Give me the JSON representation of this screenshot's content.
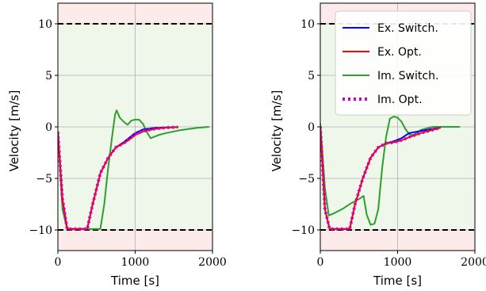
{
  "chart_data": [
    {
      "type": "line",
      "title": "",
      "xlabel": "Time [s]",
      "ylabel": "Velocity [m/s]",
      "xlim": [
        0,
        2000
      ],
      "ylim": [
        -12,
        12
      ],
      "xticks": [
        0,
        1000,
        2000
      ],
      "yticks": [
        -10,
        -5,
        0,
        5,
        10
      ],
      "grid": true,
      "bounds": [
        -10,
        10
      ],
      "regions": {
        "feasible_color": "#eef7ea",
        "infeasible_color": "#fdeaea"
      },
      "legend": null,
      "series": [
        {
          "name": "Ex. Switch.",
          "color": "#0000ff",
          "style": "solid",
          "x": [
            0,
            60,
            120,
            250,
            380,
            450,
            550,
            650,
            750,
            850,
            950,
            1000,
            1100,
            1250,
            1400,
            1550
          ],
          "y": [
            -0.5,
            -7,
            -9.9,
            -9.9,
            -9.9,
            -7.5,
            -4.5,
            -3.0,
            -2.0,
            -1.5,
            -0.9,
            -0.6,
            -0.25,
            -0.1,
            -0.05,
            -0.02
          ]
        },
        {
          "name": "Ex. Opt.",
          "color": "#ff0000",
          "style": "solid",
          "x": [
            0,
            60,
            120,
            250,
            380,
            450,
            550,
            650,
            750,
            850,
            950,
            1000,
            1100,
            1250,
            1400,
            1550
          ],
          "y": [
            -0.5,
            -7,
            -9.9,
            -9.9,
            -9.9,
            -7.5,
            -4.5,
            -3.0,
            -2.0,
            -1.6,
            -1.1,
            -0.8,
            -0.45,
            -0.2,
            -0.08,
            -0.03
          ]
        },
        {
          "name": "Im. Switch.",
          "color": "#2ca02c",
          "style": "solid",
          "x": [
            0,
            60,
            120,
            250,
            400,
            550,
            600,
            650,
            700,
            740,
            760,
            800,
            850,
            900,
            950,
            1000,
            1050,
            1100,
            1150,
            1200,
            1300,
            1400,
            1500,
            1600,
            1700,
            1800,
            1950
          ],
          "y": [
            -0.5,
            -8,
            -9.9,
            -9.9,
            -9.9,
            -9.9,
            -7.5,
            -4.0,
            -1.0,
            1.2,
            1.6,
            0.9,
            0.5,
            0.2,
            0.6,
            0.7,
            0.7,
            0.3,
            -0.5,
            -1.1,
            -0.8,
            -0.6,
            -0.45,
            -0.3,
            -0.2,
            -0.1,
            0.0
          ]
        },
        {
          "name": "Im. Opt.",
          "color": "#cc00cc",
          "style": "dotted",
          "x": [
            0,
            60,
            120,
            250,
            380,
            450,
            550,
            650,
            750,
            850,
            950,
            1000,
            1100,
            1250,
            1400,
            1550
          ],
          "y": [
            -0.5,
            -7,
            -9.9,
            -9.9,
            -9.9,
            -7.5,
            -4.5,
            -3.0,
            -2.0,
            -1.6,
            -1.0,
            -0.7,
            -0.4,
            -0.2,
            -0.08,
            -0.03
          ]
        }
      ]
    },
    {
      "type": "line",
      "title": "",
      "xlabel": "Time [s]",
      "ylabel": "Velocity [m/s]",
      "xlim": [
        0,
        2000
      ],
      "ylim": [
        -12,
        12
      ],
      "xticks": [
        0,
        1000,
        2000
      ],
      "yticks": [
        -10,
        -5,
        0,
        5,
        10
      ],
      "grid": true,
      "bounds": [
        -10,
        10
      ],
      "regions": {
        "feasible_color": "#eef7ea",
        "infeasible_color": "#fdeaea"
      },
      "legend": {
        "placement": "top-right",
        "entries": [
          "Ex. Switch.",
          "Ex. Opt.",
          "Im. Switch.",
          "Im. Opt."
        ]
      },
      "series": [
        {
          "name": "Ex. Switch.",
          "color": "#0000ff",
          "style": "solid",
          "x": [
            0,
            60,
            120,
            250,
            380,
            450,
            550,
            650,
            750,
            850,
            950,
            1050,
            1150,
            1300,
            1450,
            1550
          ],
          "y": [
            0.0,
            -8,
            -9.9,
            -9.9,
            -9.9,
            -7.5,
            -5.0,
            -3.0,
            -2.0,
            -1.6,
            -1.4,
            -1.1,
            -0.6,
            -0.4,
            -0.2,
            -0.1
          ]
        },
        {
          "name": "Ex. Opt.",
          "color": "#ff0000",
          "style": "solid",
          "x": [
            0,
            60,
            120,
            250,
            380,
            450,
            550,
            650,
            750,
            850,
            950,
            1050,
            1150,
            1300,
            1450,
            1550
          ],
          "y": [
            0.0,
            -8,
            -9.9,
            -9.9,
            -9.9,
            -7.5,
            -5.0,
            -3.0,
            -2.0,
            -1.6,
            -1.5,
            -1.3,
            -1.0,
            -0.6,
            -0.3,
            -0.1
          ]
        },
        {
          "name": "Im. Switch.",
          "color": "#2ca02c",
          "style": "solid",
          "x": [
            0,
            60,
            110,
            200,
            300,
            400,
            500,
            560,
            600,
            650,
            700,
            750,
            800,
            850,
            900,
            950,
            1000,
            1050,
            1100,
            1150,
            1200,
            1300,
            1450,
            1600,
            1800
          ],
          "y": [
            0.3,
            -6,
            -8.6,
            -8.3,
            -7.9,
            -7.4,
            -7.0,
            -6.7,
            -8.5,
            -9.5,
            -9.4,
            -8.0,
            -4.0,
            -1.0,
            0.8,
            1.0,
            0.9,
            0.5,
            -0.2,
            -0.7,
            -0.8,
            -0.3,
            0.0,
            0.0,
            0.0
          ]
        },
        {
          "name": "Im. Opt.",
          "color": "#cc00cc",
          "style": "dotted",
          "x": [
            0,
            60,
            120,
            250,
            380,
            450,
            550,
            650,
            750,
            850,
            950,
            1050,
            1150,
            1300,
            1450,
            1550
          ],
          "y": [
            0.0,
            -8,
            -9.9,
            -9.9,
            -9.9,
            -7.5,
            -5.0,
            -3.0,
            -2.0,
            -1.6,
            -1.5,
            -1.3,
            -1.0,
            -0.6,
            -0.3,
            -0.1
          ]
        }
      ]
    }
  ]
}
